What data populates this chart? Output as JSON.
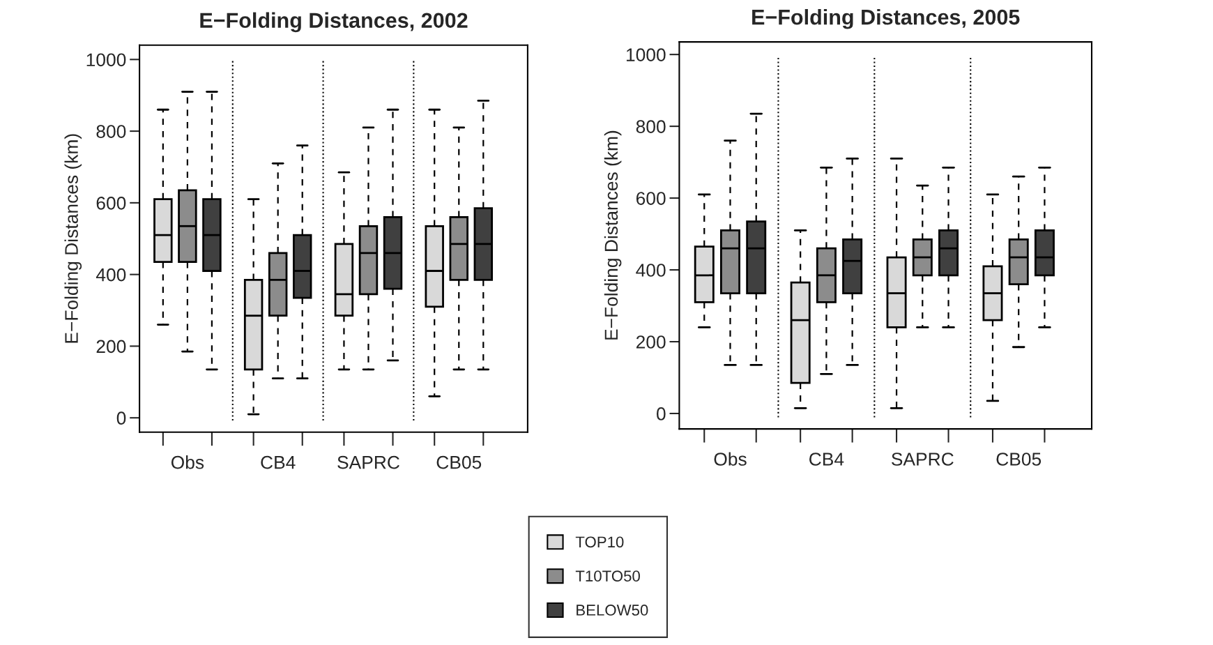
{
  "chart_data": [
    {
      "type": "box",
      "title": "E−Folding Distances, 2002",
      "ylabel": "E−Folding Distances (km)",
      "categories": [
        "Obs",
        "CB4",
        "SAPRC",
        "CB05"
      ],
      "ylim": [
        -40,
        1040
      ],
      "yticks": [
        0,
        200,
        400,
        600,
        800,
        1000
      ],
      "legend": "bottom right",
      "grid": false,
      "series": [
        {
          "name": "TOP10",
          "color": "#d9d9d9",
          "boxes": [
            {
              "low": 260,
              "q1": 435,
              "median": 510,
              "q3": 610,
              "high": 860
            },
            {
              "low": 10,
              "q1": 135,
              "median": 285,
              "q3": 385,
              "high": 610
            },
            {
              "low": 135,
              "q1": 285,
              "median": 345,
              "q3": 485,
              "high": 685
            },
            {
              "low": 60,
              "q1": 310,
              "median": 410,
              "q3": 535,
              "high": 860
            }
          ]
        },
        {
          "name": "T10TO50",
          "color": "#8c8c8c",
          "boxes": [
            {
              "low": 185,
              "q1": 435,
              "median": 535,
              "q3": 635,
              "high": 910
            },
            {
              "low": 110,
              "q1": 285,
              "median": 385,
              "q3": 460,
              "high": 710
            },
            {
              "low": 135,
              "q1": 345,
              "median": 460,
              "q3": 535,
              "high": 810
            },
            {
              "low": 135,
              "q1": 385,
              "median": 485,
              "q3": 560,
              "high": 810
            }
          ]
        },
        {
          "name": "BELOW50",
          "color": "#404040",
          "boxes": [
            {
              "low": 135,
              "q1": 410,
              "median": 510,
              "q3": 610,
              "high": 910
            },
            {
              "low": 110,
              "q1": 335,
              "median": 410,
              "q3": 510,
              "high": 760
            },
            {
              "low": 160,
              "q1": 360,
              "median": 460,
              "q3": 560,
              "high": 860
            },
            {
              "low": 135,
              "q1": 385,
              "median": 485,
              "q3": 585,
              "high": 885
            }
          ]
        }
      ]
    },
    {
      "type": "box",
      "title": "E−Folding Distances, 2005",
      "ylabel": "E−Folding Distances (km)",
      "categories": [
        "Obs",
        "CB4",
        "SAPRC",
        "CB05"
      ],
      "ylim": [
        -43,
        1035
      ],
      "yticks": [
        0,
        200,
        400,
        600,
        800,
        1000
      ],
      "grid": false,
      "series": [
        {
          "color": "#d9d9d9",
          "boxes": [
            {
              "low": 240,
              "q1": 310,
              "median": 385,
              "q3": 465,
              "high": 610
            },
            {
              "low": 15,
              "q1": 85,
              "median": 260,
              "q3": 365,
              "high": 510
            },
            {
              "low": 15,
              "q1": 240,
              "median": 335,
              "q3": 435,
              "high": 710
            },
            {
              "low": 35,
              "q1": 260,
              "median": 335,
              "q3": 410,
              "high": 610
            }
          ]
        },
        {
          "color": "#8c8c8c",
          "boxes": [
            {
              "low": 135,
              "q1": 335,
              "median": 460,
              "q3": 510,
              "high": 760
            },
            {
              "low": 110,
              "q1": 310,
              "median": 385,
              "q3": 460,
              "high": 685
            },
            {
              "low": 240,
              "q1": 385,
              "median": 435,
              "q3": 485,
              "high": 635
            },
            {
              "low": 185,
              "q1": 360,
              "median": 435,
              "q3": 485,
              "high": 660
            }
          ]
        },
        {
          "color": "#404040",
          "boxes": [
            {
              "low": 135,
              "q1": 335,
              "median": 460,
              "q3": 535,
              "high": 835
            },
            {
              "low": 135,
              "q1": 335,
              "median": 425,
              "q3": 485,
              "high": 710
            },
            {
              "low": 240,
              "q1": 385,
              "median": 460,
              "q3": 510,
              "high": 685
            },
            {
              "low": 240,
              "q1": 385,
              "median": 435,
              "q3": 510,
              "high": 685
            }
          ]
        }
      ]
    }
  ]
}
